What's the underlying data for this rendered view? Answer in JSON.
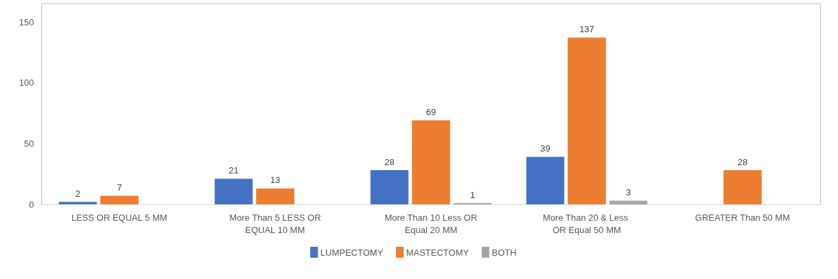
{
  "chart_data": {
    "type": "bar",
    "categories": [
      "LESS OR EQUAL 5 MM",
      "More Than 5 LESS OR EQUAL 10 MM",
      "More Than 10 Less OR Equal 20 MM",
      "More Than  20 & Less OR Equal 50 MM",
      "GREATER Than 50 MM"
    ],
    "series": [
      {
        "name": "LUMPECTOMY",
        "color": "#4472c4",
        "values": [
          2,
          21,
          28,
          39,
          null
        ]
      },
      {
        "name": "MASTECTOMY",
        "color": "#ed7d31",
        "values": [
          7,
          13,
          69,
          137,
          28
        ]
      },
      {
        "name": "BOTH",
        "color": "#a5a5a5",
        "values": [
          null,
          null,
          1,
          3,
          null
        ]
      }
    ],
    "ylim": [
      0,
      165
    ],
    "yticks": [
      0,
      50,
      100,
      150
    ],
    "grid": false,
    "legend": "bottom",
    "data_labels": true
  }
}
